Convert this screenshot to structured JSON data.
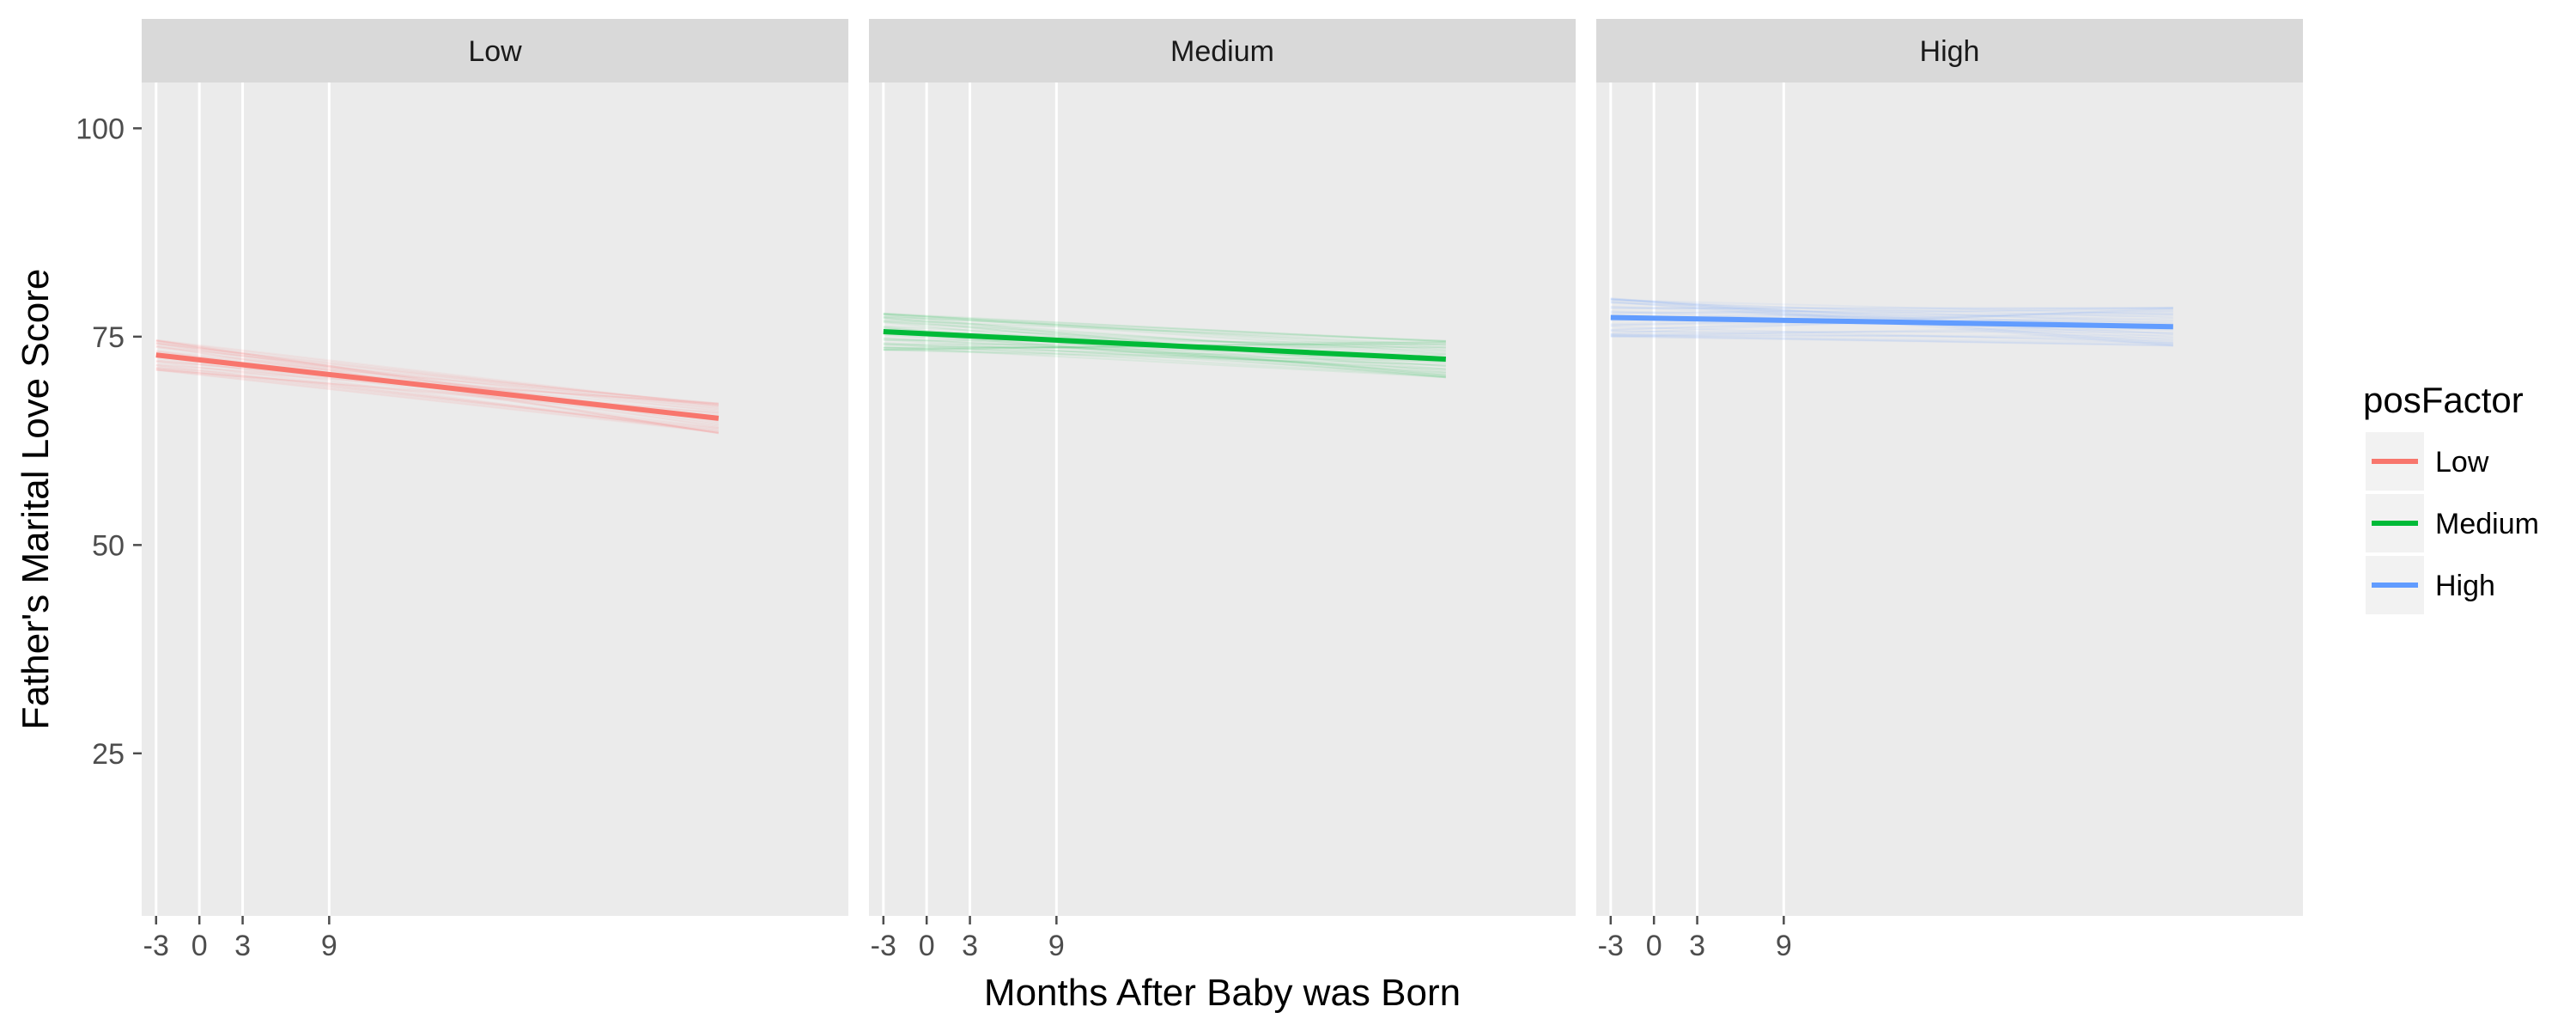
{
  "chart_data": {
    "type": "line",
    "title": "",
    "xlabel": "Months After Baby was Born",
    "ylabel": "Father's Marital Love Score",
    "xlim": [
      -4,
      45
    ],
    "ylim": [
      5.5,
      105.5
    ],
    "x_ticks": [
      -3,
      0,
      3,
      9
    ],
    "y_ticks": [
      25,
      50,
      75,
      100
    ],
    "grid": true,
    "legend": {
      "title": "posFactor",
      "position": "right"
    },
    "facets": [
      {
        "label": "Low",
        "series": "Low",
        "color": "#F8766D",
        "x": [
          -3,
          36
        ],
        "values": [
          72.8,
          65.2
        ],
        "ribbon_halfwidth": 1.8
      },
      {
        "label": "Medium",
        "series": "Medium",
        "color": "#00BA38",
        "x": [
          -3,
          36
        ],
        "values": [
          75.6,
          72.3
        ],
        "ribbon_halfwidth": 2.2
      },
      {
        "label": "High",
        "series": "High",
        "color": "#619CFF",
        "x": [
          -3,
          36
        ],
        "values": [
          77.3,
          76.2
        ],
        "ribbon_halfwidth": 2.3
      }
    ],
    "series": [
      {
        "name": "Low",
        "color": "#F8766D"
      },
      {
        "name": "Medium",
        "color": "#00BA38"
      },
      {
        "name": "High",
        "color": "#619CFF"
      }
    ]
  }
}
